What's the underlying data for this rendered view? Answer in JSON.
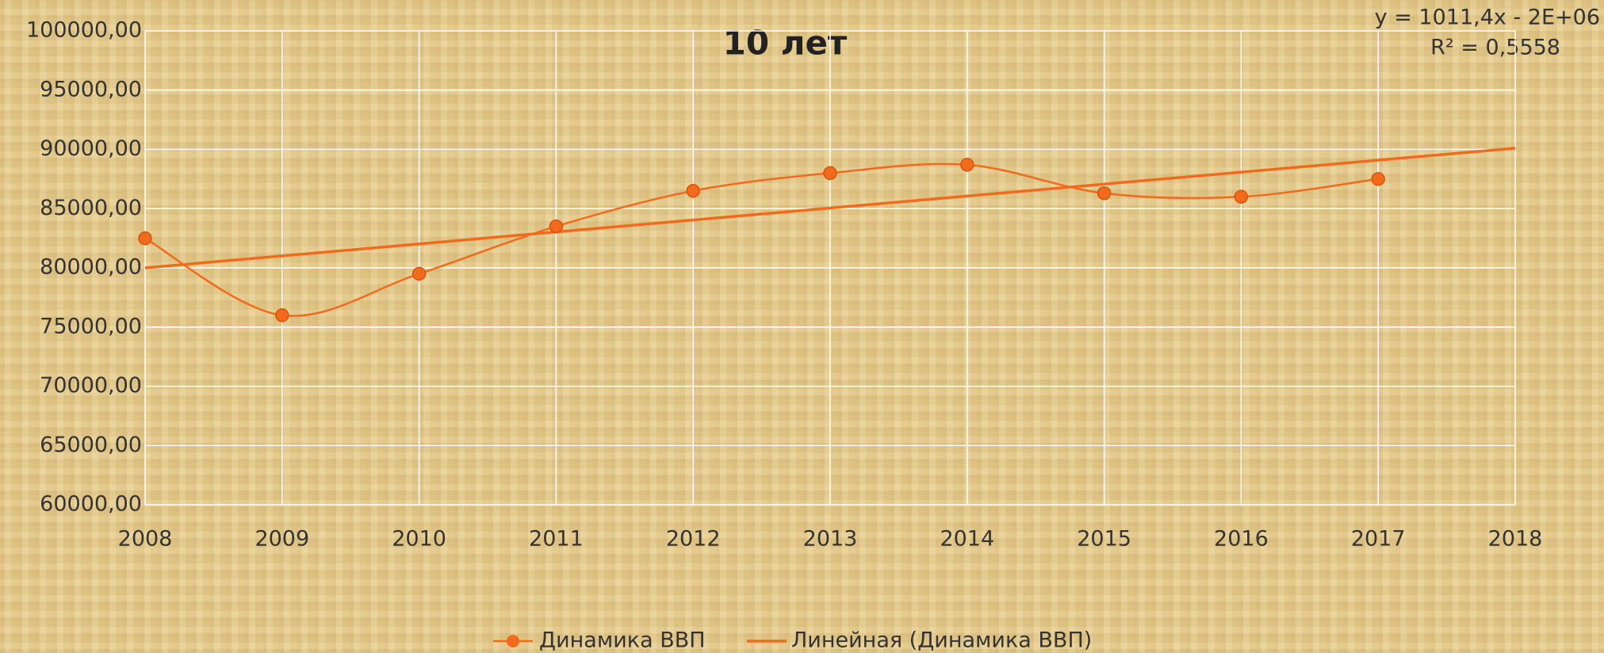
{
  "chart_data": {
    "type": "line",
    "title": "10 лет",
    "annotations": [
      "y = 1011,4x - 2E+06",
      "R² = 0,5558"
    ],
    "x": [
      2008,
      2009,
      2010,
      2011,
      2012,
      2013,
      2014,
      2015,
      2016,
      2017
    ],
    "series": [
      {
        "name": "Динамика ВВП",
        "color": "#f26a1b",
        "values": [
          82500,
          76000,
          79500,
          83500,
          86500,
          88000,
          88700,
          86300,
          86000,
          87500
        ]
      }
    ],
    "trendline": {
      "name": "Линейная (Динамика ВВП)",
      "color": "#f26a1b",
      "x": [
        2008,
        2018
      ],
      "values": [
        80000,
        90100
      ]
    },
    "xlim": [
      2008,
      2018
    ],
    "xticks": [
      2008,
      2009,
      2010,
      2011,
      2012,
      2013,
      2014,
      2015,
      2016,
      2017,
      2018
    ],
    "ylim": [
      60000,
      100000
    ],
    "yticks": [
      {
        "value": 60000,
        "label": "60000,00"
      },
      {
        "value": 65000,
        "label": "65000,00"
      },
      {
        "value": 70000,
        "label": "70000,00"
      },
      {
        "value": 75000,
        "label": "75000,00"
      },
      {
        "value": 80000,
        "label": "80000,00"
      },
      {
        "value": 85000,
        "label": "85000,00"
      },
      {
        "value": 90000,
        "label": "90000,00"
      },
      {
        "value": 95000,
        "label": "95000,00"
      },
      {
        "value": 100000,
        "label": "100000,00"
      }
    ],
    "grid": true,
    "legend": "bottom"
  }
}
